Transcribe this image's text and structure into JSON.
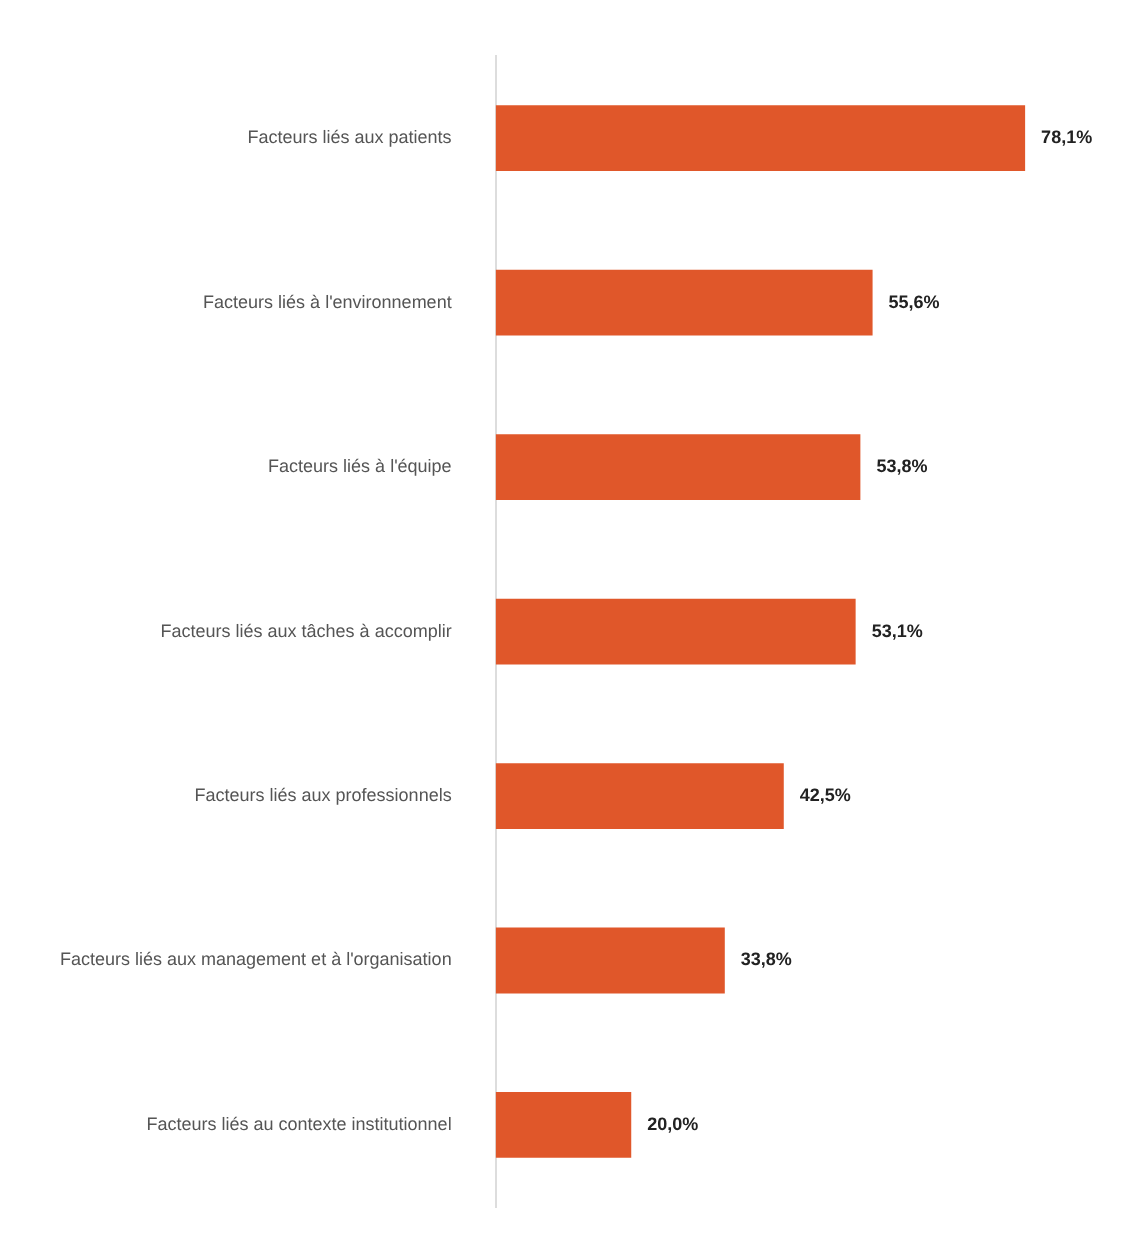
{
  "chart_data": {
    "type": "bar",
    "orientation": "horizontal",
    "categories": [
      "Facteurs liés aux patients",
      "Facteurs liés à l'environnement",
      "Facteurs liés à l'équipe",
      "Facteurs liés aux tâches à accomplir",
      "Facteurs liés aux professionnels",
      "Facteurs liés aux management et à l'organisation",
      "Facteurs liés au contexte institutionnel"
    ],
    "values": [
      78.1,
      55.6,
      53.8,
      53.1,
      42.5,
      33.8,
      20.0
    ],
    "value_labels": [
      "78,1%",
      "55,6%",
      "53,8%",
      "53,1%",
      "42,5%",
      "33,8%",
      "20,0%"
    ],
    "color": "#e0572a",
    "grid": false,
    "legend": false
  }
}
